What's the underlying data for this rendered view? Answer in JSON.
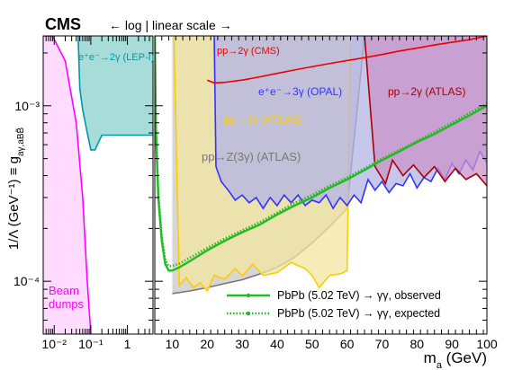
{
  "chart_data": {
    "type": "line",
    "experiment": "CMS",
    "scale_note": "← log | linear scale →",
    "xlabel": "m_a (GeV)",
    "ylabel": "1/Λ (GeV⁻¹) ≡ g_aγ,aBB̃",
    "ylog": true,
    "ylim": [
      5e-05,
      0.0025
    ],
    "x_left": {
      "scale": "log",
      "xlim": [
        0.005,
        5
      ],
      "ticks": [
        {
          "v": 0.01,
          "label": "10⁻²"
        },
        {
          "v": 0.1,
          "label": "10⁻¹"
        },
        {
          "v": 1,
          "label": "1"
        }
      ]
    },
    "x_right": {
      "scale": "linear",
      "xlim": [
        5,
        100
      ],
      "ticks": [
        10,
        20,
        30,
        40,
        50,
        60,
        70,
        80,
        90,
        100
      ]
    },
    "y_ticks": [
      {
        "v": 0.0001,
        "label": "10⁻⁴"
      },
      {
        "v": 0.001,
        "label": "10⁻³"
      }
    ],
    "regions": [
      {
        "label": "Beam dumps",
        "color": "#ff00ff",
        "fill": "#ffdcff",
        "x": [
          0.005,
          0.009,
          0.02,
          0.04,
          0.06,
          0.08,
          0.1
        ],
        "y": [
          0.0025,
          0.0025,
          0.0018,
          0.0008,
          0.0003,
          0.0001,
          5e-05
        ]
      },
      {
        "label": "e⁺e⁻→2γ (LEP-I)",
        "color": "#0099aa",
        "fill": "#a8dcd8",
        "x": [
          0.045,
          0.05,
          0.06,
          0.08,
          0.1,
          0.13,
          0.2,
          0.5,
          1,
          2,
          5
        ],
        "y": [
          0.0025,
          0.00125,
          0.00095,
          0.0007,
          0.00056,
          0.00056,
          0.00068,
          0.00068,
          0.00068,
          0.00068,
          0.00068
        ]
      },
      {
        "label": "pp→Z(3γ) (ATLAS)",
        "color": "#777777",
        "fill": "#c8c8c8",
        "x": [
          10,
          15,
          20,
          25,
          30,
          35,
          40,
          45,
          50,
          55,
          60,
          65
        ],
        "y": [
          8.5e-05,
          8.8e-05,
          9.2e-05,
          9.7e-05,
          0.000102,
          0.00011,
          0.00012,
          0.000137,
          0.000165,
          0.000205,
          0.00026,
          0.0025
        ]
      },
      {
        "label": "pp→3γ (ATLAS)",
        "color": "#ffcc00",
        "fill": "#f3e6a0",
        "x": [
          10.5,
          12,
          14,
          16,
          18,
          20,
          22,
          25,
          28,
          30,
          33,
          36,
          40,
          44,
          48,
          50,
          52,
          55,
          58,
          60,
          61
        ],
        "y": [
          0.0025,
          9.5e-05,
          0.000105,
          9.2e-05,
          9.8e-05,
          8.8e-05,
          0.000108,
          0.000103,
          0.000118,
          0.000107,
          0.000125,
          0.000108,
          0.000112,
          0.000128,
          0.000118,
          0.000108,
          9.2e-05,
          0.000108,
          0.00011,
          0.000115,
          0.0025
        ]
      },
      {
        "label": "e⁺e⁻→3γ (OPAL)",
        "color": "#3333ff",
        "fill": "#b4b4e6",
        "x": [
          22,
          22.5,
          24,
          26,
          28,
          30,
          32,
          34,
          36,
          38,
          40,
          42,
          44,
          46,
          48,
          50,
          52,
          54,
          56,
          58,
          60,
          62,
          64,
          66,
          68,
          70,
          72,
          74,
          76,
          78,
          80,
          82,
          84,
          86,
          88,
          90,
          92,
          94,
          96,
          98,
          100
        ],
        "y": [
          0.0025,
          0.00045,
          0.00037,
          0.00033,
          0.00029,
          0.00031,
          0.00028,
          0.0003,
          0.00026,
          0.0003,
          0.00027,
          0.00031,
          0.00028,
          0.00031,
          0.00027,
          0.00029,
          0.00028,
          0.00031,
          0.00026,
          0.0003,
          0.00027,
          0.00031,
          0.00028,
          0.00038,
          0.00033,
          0.00037,
          0.00032,
          0.00036,
          0.00035,
          0.00041,
          0.00034,
          0.00039,
          0.00037,
          0.00044,
          0.00038,
          0.00047,
          0.00041,
          0.00049,
          0.00043,
          0.00055,
          0.00047
        ]
      },
      {
        "label": "pp→2γ (ATLAS)",
        "color": "#aa0000",
        "fill": "#c993c9",
        "x": [
          65,
          68,
          71,
          73,
          76,
          79,
          82,
          85,
          88,
          91,
          94,
          97,
          100
        ],
        "y": [
          0.0025,
          0.00045,
          0.00036,
          0.00049,
          0.0004,
          0.00046,
          0.00039,
          0.00045,
          0.00037,
          0.00044,
          0.00038,
          0.00041,
          0.00035
        ]
      },
      {
        "label": "pp→2γ (CMS)",
        "color": "#ee0000",
        "fill": "",
        "x": [
          20,
          22,
          25,
          30,
          35,
          40,
          45,
          50,
          55,
          60,
          65,
          70,
          75,
          80,
          85,
          90,
          95,
          100
        ],
        "y": [
          0.0014,
          0.00135,
          0.00136,
          0.0014,
          0.00146,
          0.00153,
          0.0016,
          0.00167,
          0.00174,
          0.00181,
          0.00188,
          0.00196,
          0.00205,
          0.00213,
          0.00222,
          0.0023,
          0.00238,
          0.0025
        ]
      }
    ],
    "series": [
      {
        "name": "PbPb (5.02 TeV) → γγ, observed",
        "color": "#22bb22",
        "style": "solid",
        "x": [
          5,
          5.3,
          6,
          7,
          8,
          9,
          10,
          12,
          15,
          20,
          25,
          30,
          35,
          40,
          45,
          50,
          55,
          60,
          65,
          70,
          75,
          80,
          85,
          90,
          95,
          100
        ],
        "y": [
          0.0025,
          0.00075,
          0.0003,
          0.00017,
          0.000125,
          0.000115,
          0.000115,
          0.00012,
          0.00013,
          0.00015,
          0.00017,
          0.00019,
          0.00021,
          0.00024,
          0.00027,
          0.0003,
          0.00034,
          0.00038,
          0.00043,
          0.00049,
          0.00055,
          0.00062,
          0.00069,
          0.00078,
          0.00088,
          0.001
        ]
      },
      {
        "name": "PbPb (5.02 TeV) → γγ, expected",
        "color": "#22bb22",
        "style": "dotted",
        "x": [
          5,
          5.3,
          6,
          7,
          8,
          9,
          10,
          12,
          15,
          20,
          25,
          30,
          35,
          40,
          45,
          50,
          55,
          60,
          65,
          70,
          75,
          80,
          85,
          90,
          95,
          100
        ],
        "y": [
          0.0025,
          0.0008,
          0.00032,
          0.00018,
          0.000132,
          0.000122,
          0.000122,
          0.000126,
          0.000136,
          0.000155,
          0.000175,
          0.000195,
          0.000217,
          0.000246,
          0.00028,
          0.00031,
          0.00035,
          0.00039,
          0.00044,
          0.0005,
          0.00056,
          0.00063,
          0.00071,
          0.0008,
          0.00091,
          0.00103
        ]
      }
    ]
  }
}
